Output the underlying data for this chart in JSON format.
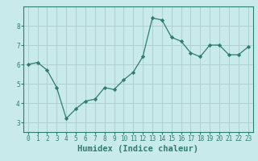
{
  "x": [
    0,
    1,
    2,
    3,
    4,
    5,
    6,
    7,
    8,
    9,
    10,
    11,
    12,
    13,
    14,
    15,
    16,
    17,
    18,
    19,
    20,
    21,
    22,
    23
  ],
  "y": [
    6.0,
    6.1,
    5.7,
    4.8,
    3.2,
    3.7,
    4.1,
    4.2,
    4.8,
    4.7,
    5.2,
    5.6,
    6.4,
    8.4,
    8.3,
    7.4,
    7.2,
    6.6,
    6.4,
    7.0,
    7.0,
    6.5,
    6.5,
    6.9
  ],
  "line_color": "#2e7d6e",
  "marker": "D",
  "marker_size": 2.2,
  "bg_color": "#c8eaea",
  "grid_color": "#b0d0d0",
  "xlabel": "Humidex (Indice chaleur)",
  "ylim": [
    2.5,
    9.0
  ],
  "xlim": [
    -0.5,
    23.5
  ],
  "yticks": [
    3,
    4,
    5,
    6,
    7,
    8
  ],
  "xticks": [
    0,
    1,
    2,
    3,
    4,
    5,
    6,
    7,
    8,
    9,
    10,
    11,
    12,
    13,
    14,
    15,
    16,
    17,
    18,
    19,
    20,
    21,
    22,
    23
  ],
  "spine_color": "#2e7d6e",
  "tick_label_color": "#2e7d6e",
  "xlabel_color": "#2e7d6e",
  "xlabel_fontsize": 7.5,
  "tick_fontsize": 5.5
}
